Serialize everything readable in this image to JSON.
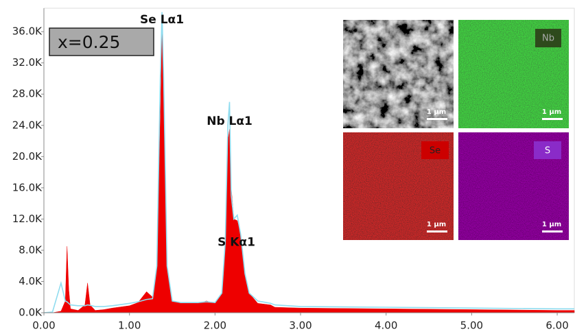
{
  "chart_data": {
    "type": "area",
    "annotations": [
      {
        "text": "Se Lα1",
        "x": 1.38,
        "y": 37500
      },
      {
        "text": "Nb Lα1",
        "x": 2.17,
        "y": 24500
      },
      {
        "text": "S  Kα1",
        "x": 2.25,
        "y": 9000
      }
    ],
    "label_box": "x=0.25",
    "x": [
      0,
      0.1,
      0.2,
      0.25,
      0.27,
      0.29,
      0.31,
      0.4,
      0.48,
      0.51,
      0.54,
      0.6,
      0.7,
      0.8,
      1.0,
      1.1,
      1.2,
      1.27,
      1.32,
      1.36,
      1.38,
      1.4,
      1.44,
      1.5,
      1.6,
      1.8,
      1.9,
      2.0,
      2.08,
      2.12,
      2.15,
      2.17,
      2.19,
      2.22,
      2.26,
      2.3,
      2.35,
      2.4,
      2.5,
      2.65,
      2.7,
      3.0,
      4.0,
      5.0,
      6.0,
      6.2
    ],
    "series": [
      {
        "color": "#ee0000",
        "fill": true,
        "values": [
          0,
          0,
          200,
          1500,
          8500,
          3000,
          500,
          300,
          1000,
          3800,
          1000,
          300,
          400,
          600,
          900,
          1300,
          2700,
          2000,
          6000,
          25000,
          36500,
          28000,
          6000,
          1500,
          1200,
          1200,
          1500,
          1200,
          2500,
          9000,
          22000,
          23500,
          16000,
          12000,
          11800,
          10000,
          5000,
          2500,
          1200,
          1000,
          700,
          600,
          500,
          400,
          300,
          300
        ]
      },
      {
        "color": "#8fdcef",
        "fill": false,
        "values": [
          0,
          100,
          3800,
          1500,
          1400,
          1200,
          1000,
          900,
          900,
          1000,
          950,
          800,
          800,
          900,
          1200,
          1400,
          1700,
          1800,
          6000,
          30000,
          38500,
          30000,
          6000,
          1500,
          1300,
          1300,
          1400,
          1300,
          2500,
          9000,
          24000,
          27000,
          15000,
          12000,
          12500,
          10000,
          5000,
          2500,
          1500,
          1200,
          1000,
          800,
          700,
          600,
          500,
          500
        ]
      }
    ],
    "xlim": [
      0,
      6.2
    ],
    "ylim": [
      0,
      39000
    ],
    "xticks": [
      {
        "value": 0,
        "label": "0.00"
      },
      {
        "value": 1,
        "label": "1.00"
      },
      {
        "value": 2,
        "label": "2.00"
      },
      {
        "value": 3,
        "label": "3.00"
      },
      {
        "value": 4,
        "label": "4.00"
      },
      {
        "value": 5,
        "label": "5.00"
      },
      {
        "value": 6,
        "label": "6.00"
      }
    ],
    "yticks": [
      {
        "value": 0,
        "label": "0.0K"
      },
      {
        "value": 4000,
        "label": "4.0K"
      },
      {
        "value": 8000,
        "label": "8.0K"
      },
      {
        "value": 12000,
        "label": "12.0K"
      },
      {
        "value": 16000,
        "label": "16.0K"
      },
      {
        "value": 20000,
        "label": "20.0K"
      },
      {
        "value": 24000,
        "label": "24.0K"
      },
      {
        "value": 28000,
        "label": "28.0K"
      },
      {
        "value": 32000,
        "label": "32.0K"
      },
      {
        "value": 36000,
        "label": "36.0K"
      }
    ]
  },
  "insets": [
    {
      "scale_bar": "1 µm"
    },
    {
      "label": "Nb",
      "scale_bar": "1 µm"
    },
    {
      "label": "Se",
      "scale_bar": "1 µm"
    },
    {
      "label": "S",
      "scale_bar": "1 µm"
    }
  ]
}
